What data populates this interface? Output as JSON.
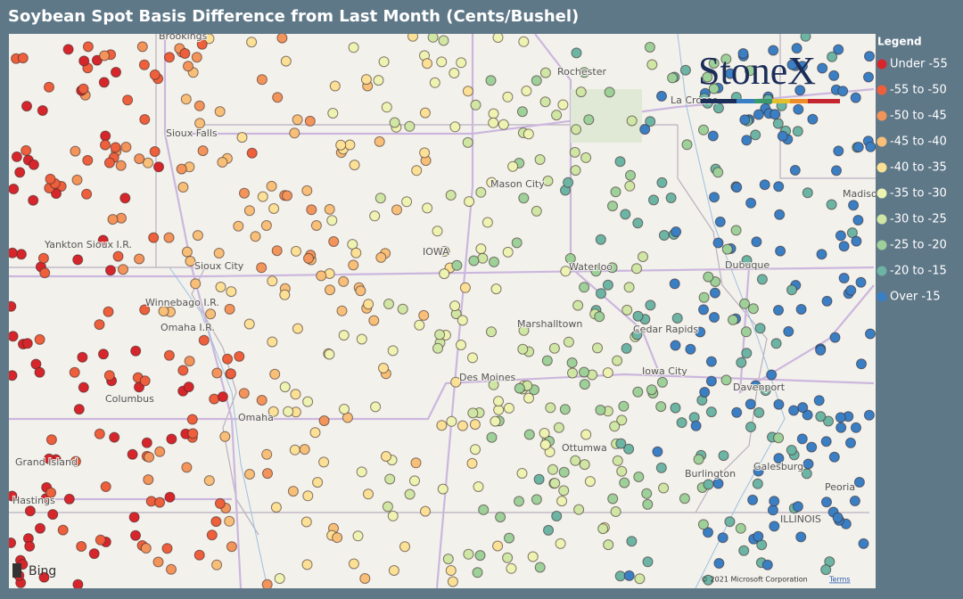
{
  "title": "Soybean Spot Basis Difference from Last Month (Cents/Bushel)",
  "legend": {
    "title": "Legend",
    "items": [
      {
        "label": "Under -55",
        "color": "#d7262b"
      },
      {
        "label": "-55 to -50",
        "color": "#ee5f3b"
      },
      {
        "label": "-50 to -45",
        "color": "#f3945a"
      },
      {
        "label": "-45 to -40",
        "color": "#f8bf78"
      },
      {
        "label": "-40 to -35",
        "color": "#fbe096"
      },
      {
        "label": "-35 to -30",
        "color": "#eef3b2"
      },
      {
        "label": "-30 to -25",
        "color": "#cfe6a4"
      },
      {
        "label": "-25 to -20",
        "color": "#9ed09a"
      },
      {
        "label": "-20 to -15",
        "color": "#6cb4a4"
      },
      {
        "label": "Over -15",
        "color": "#3a7fc4"
      }
    ]
  },
  "map": {
    "labels": [
      "Brookings",
      "Rochester",
      "Sioux Falls",
      "Mason City",
      "IOWA",
      "Waterloo",
      "Dubuque",
      "Sioux City",
      "Winnebago I.R.",
      "Omaha I.R.",
      "Yankton Sioux I.R.",
      "Marshalltown",
      "Cedar Rapids",
      "Iowa City",
      "Davenport",
      "Des Moines",
      "Columbus",
      "Omaha",
      "Grand Island",
      "Hastings",
      "Ottumwa",
      "Burlington",
      "Galesburg",
      "Peoria",
      "Madison",
      "ILLINOIS",
      "La Crosse"
    ]
  },
  "logo": "StoneX",
  "attribution": {
    "provider": "Bing",
    "copyright": "© 2021 Microsoft Corporation",
    "terms": "Terms"
  }
}
